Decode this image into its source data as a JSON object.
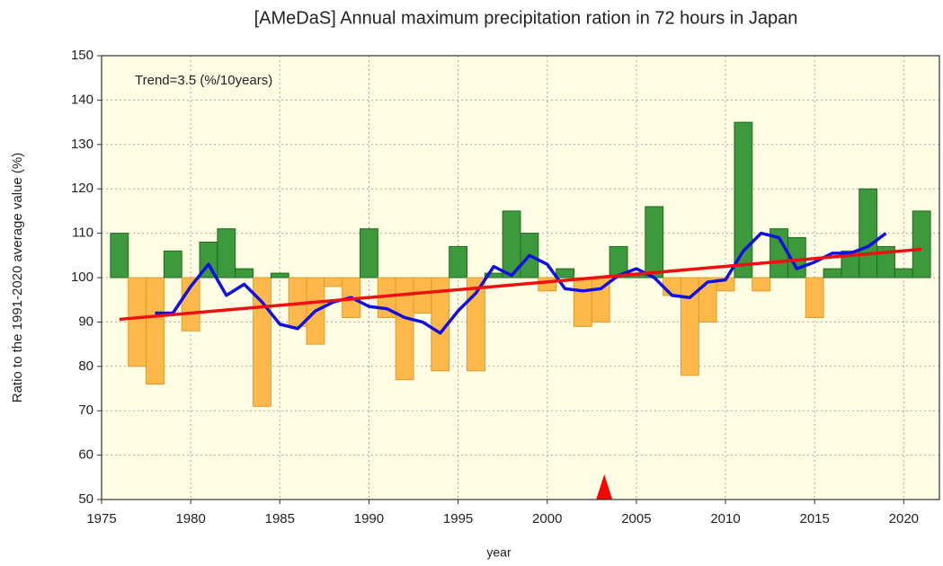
{
  "chart_data": {
    "type": "bar",
    "title": "[AMeDaS] Annual maximum precipitation ration in 72 hours in Japan",
    "xlabel": "year",
    "ylabel": "Ratio to the 1991-2020 average value (%)",
    "annotation": "Trend=3.5 (%/10years)",
    "x": [
      1976,
      1977,
      1978,
      1979,
      1980,
      1981,
      1982,
      1983,
      1984,
      1985,
      1986,
      1987,
      1988,
      1989,
      1990,
      1991,
      1992,
      1993,
      1994,
      1995,
      1996,
      1997,
      1998,
      1999,
      2000,
      2001,
      2002,
      2003,
      2004,
      2005,
      2006,
      2007,
      2008,
      2009,
      2010,
      2011,
      2012,
      2013,
      2014,
      2015,
      2016,
      2017,
      2018,
      2019,
      2020,
      2021
    ],
    "values": [
      110,
      80,
      76,
      106,
      88,
      108,
      111,
      102,
      71,
      101,
      89,
      85,
      98,
      91,
      111,
      91,
      77,
      92,
      79,
      107,
      79,
      101,
      115,
      110,
      97,
      102,
      89,
      90,
      107,
      101,
      116,
      96,
      78,
      90,
      97,
      135,
      97,
      111,
      109,
      91,
      102,
      106,
      120,
      107,
      102,
      115
    ],
    "baseline": 100,
    "color_above": "#3c9a3c",
    "color_below": "#ffb84a",
    "lines": [
      {
        "color": "#1010e0",
        "x": [
          1978,
          1979,
          1980,
          1981,
          1982,
          1983,
          1984,
          1985,
          1986,
          1987,
          1988,
          1989,
          1990,
          1991,
          1992,
          1993,
          1994,
          1995,
          1996,
          1997,
          1998,
          1999,
          2000,
          2001,
          2002,
          2003,
          2004,
          2005,
          2006,
          2007,
          2008,
          2009,
          2010,
          2011,
          2012,
          2013,
          2014,
          2015,
          2016,
          2017,
          2018,
          2019
        ],
        "values": [
          92,
          92,
          98,
          103,
          96,
          98.5,
          94.5,
          89.5,
          88.5,
          92.5,
          94.5,
          95.5,
          93.5,
          93,
          91,
          90,
          87.5,
          92.5,
          96.5,
          102.5,
          100.5,
          105,
          103,
          97.5,
          97,
          97.5,
          100.5,
          102,
          100,
          96,
          95.5,
          99,
          99.5,
          106,
          110,
          109,
          102,
          103.5,
          105.5,
          105.5,
          107,
          110
        ]
      },
      {
        "color": "#ee1010",
        "x": [
          1976,
          2021
        ],
        "values": [
          90.6,
          106.4
        ]
      }
    ],
    "marker_x": [
      2003.2
    ],
    "marker_color": "#ff0000",
    "xlim": [
      1975,
      2022
    ],
    "xticks": [
      1975,
      1980,
      1985,
      1990,
      1995,
      2000,
      2005,
      2010,
      2015,
      2020
    ],
    "ylim": [
      50,
      150
    ],
    "yticks": [
      50,
      60,
      70,
      80,
      90,
      100,
      110,
      120,
      130,
      140,
      150
    ],
    "grid": true,
    "background": "#fffde3"
  }
}
